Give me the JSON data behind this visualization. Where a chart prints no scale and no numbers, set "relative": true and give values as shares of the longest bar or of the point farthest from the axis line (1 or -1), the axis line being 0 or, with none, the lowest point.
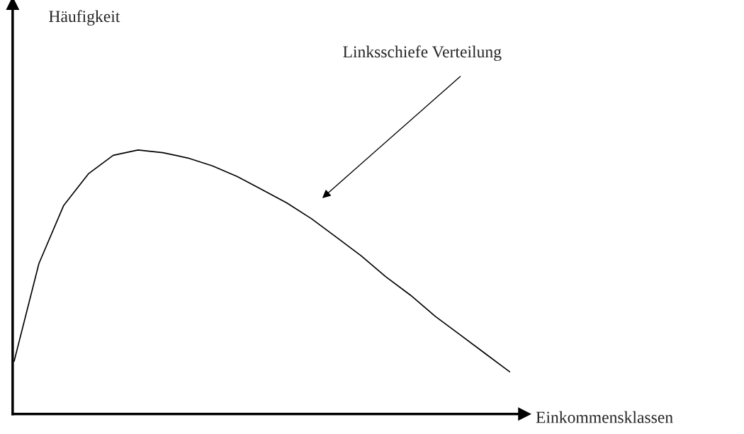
{
  "chart_data": {
    "type": "line",
    "relative": true,
    "xlabel": "Einkommensklassen",
    "annotations": [
      "Häufigkeit",
      "Linksschiefe Verteilung"
    ],
    "categories": [
      null,
      null,
      null,
      null,
      null,
      null,
      null,
      null,
      null,
      null,
      null,
      null,
      null,
      null,
      null,
      null,
      null,
      null,
      null,
      null,
      null
    ],
    "series": [
      {
        "color": "#000000",
        "values": [
          0.2,
          0.57,
          0.79,
          0.91,
          0.98,
          1.0,
          0.99,
          0.97,
          0.94,
          0.9,
          0.85,
          0.8,
          0.74,
          0.67,
          0.6,
          0.52,
          0.45,
          0.37,
          0.3,
          0.23,
          0.16
        ]
      }
    ],
    "marker": "none",
    "line_style": "solid"
  }
}
